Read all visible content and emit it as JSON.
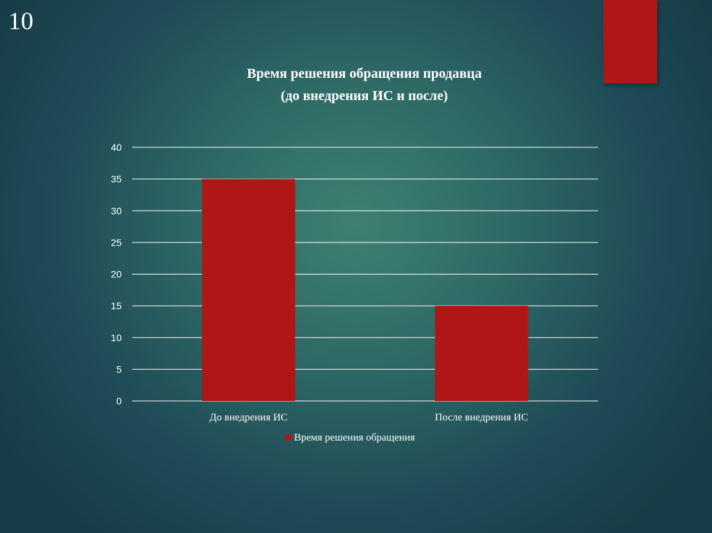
{
  "slide": {
    "number": "10"
  },
  "colors": {
    "accent": "#ae1716",
    "gridline": "#ffffff",
    "text": "#ffffff"
  },
  "chart_data": {
    "type": "bar",
    "title": [
      "Время решения обращения продавца",
      "(до внедрения ИС и после)"
    ],
    "categories": [
      "До внедрения ИС",
      "После внедрения ИС"
    ],
    "series": [
      {
        "name": "Время решения обращения",
        "values": [
          35,
          15
        ],
        "color": "#ae1716"
      }
    ],
    "ylim": [
      0,
      40
    ],
    "yticks": [
      0,
      5,
      10,
      15,
      20,
      25,
      30,
      35,
      40
    ],
    "grid": true,
    "legend_position": "bottom"
  }
}
